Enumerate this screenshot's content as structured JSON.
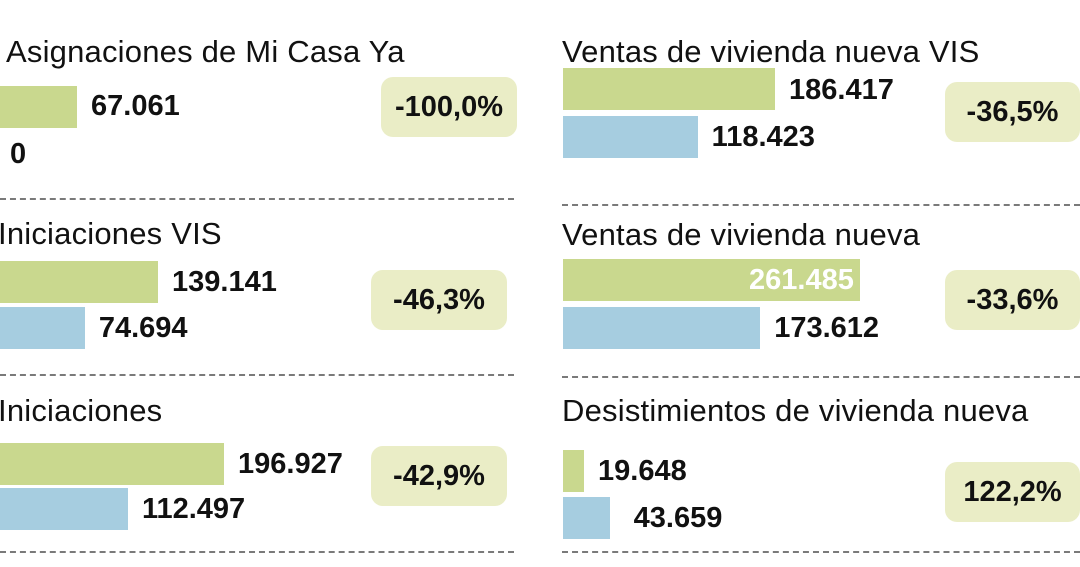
{
  "chart_data": [
    {
      "type": "bar",
      "title": "Asignaciones de Mi Casa Ya",
      "series": [
        {
          "values": [
            67061
          ]
        },
        {
          "values": [
            0
          ]
        }
      ],
      "value_labels": [
        "67.061",
        "0"
      ],
      "change": "-100,0%"
    },
    {
      "type": "bar",
      "title": "Iniciaciones VIS",
      "series": [
        {
          "values": [
            139141
          ]
        },
        {
          "values": [
            74694
          ]
        }
      ],
      "value_labels": [
        "139.141",
        "74.694"
      ],
      "change": "-46,3%"
    },
    {
      "type": "bar",
      "title": "Iniciaciones",
      "series": [
        {
          "values": [
            196927
          ]
        },
        {
          "values": [
            112497
          ]
        }
      ],
      "value_labels": [
        "196.927",
        "112.497"
      ],
      "change": "-42,9%"
    },
    {
      "type": "bar",
      "title": "Ventas de vivienda nueva VIS",
      "series": [
        {
          "values": [
            186417
          ]
        },
        {
          "values": [
            118423
          ]
        }
      ],
      "value_labels": [
        "186.417",
        "118.423"
      ],
      "change": "-36,5%"
    },
    {
      "type": "bar",
      "title": "Ventas de vivienda nueva",
      "series": [
        {
          "values": [
            261485
          ]
        },
        {
          "values": [
            173612
          ]
        }
      ],
      "value_labels": [
        "261.485",
        "173.612"
      ],
      "change": "-33,6%"
    },
    {
      "type": "bar",
      "title": "Desistimientos de vivienda nueva",
      "series": [
        {
          "values": [
            19648
          ]
        },
        {
          "values": [
            43659
          ]
        }
      ],
      "value_labels": [
        "19.648",
        "43.659"
      ],
      "change": "122,2%"
    }
  ],
  "colors": {
    "series_1": "#c9d88e",
    "series_2": "#a6cde0",
    "badge_background": "#eaedc6",
    "divider": "#7a7a7a"
  }
}
